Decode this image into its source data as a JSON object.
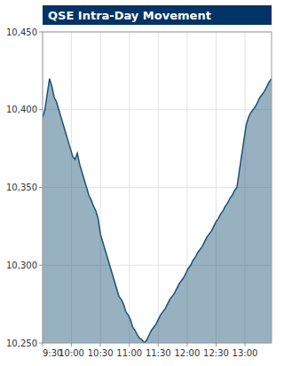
{
  "chart_data": {
    "type": "area",
    "title": "QSE Intra-Day Movement",
    "color": "#1a5276",
    "grid": true,
    "values": [
      10395,
      10400,
      10410,
      10420,
      10415,
      10408,
      10405,
      10400,
      10395,
      10390,
      10385,
      10380,
      10375,
      10370,
      10368,
      10372,
      10365,
      10360,
      10355,
      10350,
      10345,
      10342,
      10338,
      10335,
      10330,
      10320,
      10315,
      10310,
      10305,
      10300,
      10295,
      10290,
      10285,
      10280,
      10278,
      10275,
      10270,
      10268,
      10265,
      10260,
      10258,
      10255,
      10253,
      10252,
      10250,
      10252,
      10255,
      10258,
      10260,
      10262,
      10265,
      10268,
      10270,
      10272,
      10275,
      10278,
      10280,
      10282,
      10285,
      10288,
      10290,
      10292,
      10295,
      10298,
      10300,
      10303,
      10305,
      10308,
      10310,
      10312,
      10315,
      10318,
      10320,
      10322,
      10325,
      10328,
      10330,
      10333,
      10335,
      10338,
      10340,
      10343,
      10345,
      10348,
      10350,
      10360,
      10370,
      10380,
      10390,
      10395,
      10398,
      10400,
      10402,
      10405,
      10408,
      10410,
      10412,
      10415,
      10418,
      10420
    ],
    "xlim": [
      0,
      99
    ],
    "xticks": [
      {
        "value": 0,
        "label": "9:30"
      },
      {
        "value": 12.5,
        "label": "10:00"
      },
      {
        "value": 25,
        "label": "10:30"
      },
      {
        "value": 37.5,
        "label": "11:00"
      },
      {
        "value": 50,
        "label": "11:30"
      },
      {
        "value": 62.5,
        "label": "12:00"
      },
      {
        "value": 75,
        "label": "12:30"
      },
      {
        "value": 87.5,
        "label": "13:00"
      }
    ],
    "ylim": [
      10250,
      10450
    ],
    "yticks": [
      {
        "value": 10250,
        "label": "10,250"
      },
      {
        "value": 10300,
        "label": "10,300"
      },
      {
        "value": 10350,
        "label": "10,350"
      },
      {
        "value": 10400,
        "label": "10,400"
      },
      {
        "value": 10450,
        "label": "10,450"
      }
    ]
  }
}
